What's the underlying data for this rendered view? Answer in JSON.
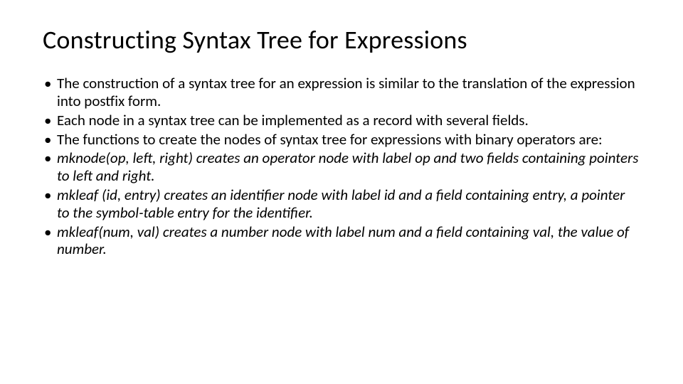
{
  "slide": {
    "title": "Constructing Syntax Tree for Expressions",
    "bullets": [
      {
        "text": "The construction of a syntax tree for an expression is similar to the translation of the expression into postfix form.",
        "italic": false
      },
      {
        "text": "Each node in a syntax tree can be implemented as a record with several fields.",
        "italic": false
      },
      {
        "text": "The functions to create the nodes of syntax tree for expressions with binary operators are:",
        "italic": false
      },
      {
        "text": "mknode(op, left, right) creates an operator node with label op and two fields containing pointers to left and right.",
        "italic": true
      },
      {
        "text": " mkleaf (id, entry) creates an identifier node with label id and a field containing entry, a pointer to the  symbol-table entry for the identifier.",
        "italic": true
      },
      {
        "text": "mkleaf(num, val) creates a number node with label num and a field containing val, the value of number.",
        "italic": true
      }
    ],
    "styles": {
      "background_color": "#ffffff",
      "text_color": "#000000",
      "title_fontsize": 36,
      "body_fontsize": 21,
      "font_family": "Calibri"
    }
  }
}
